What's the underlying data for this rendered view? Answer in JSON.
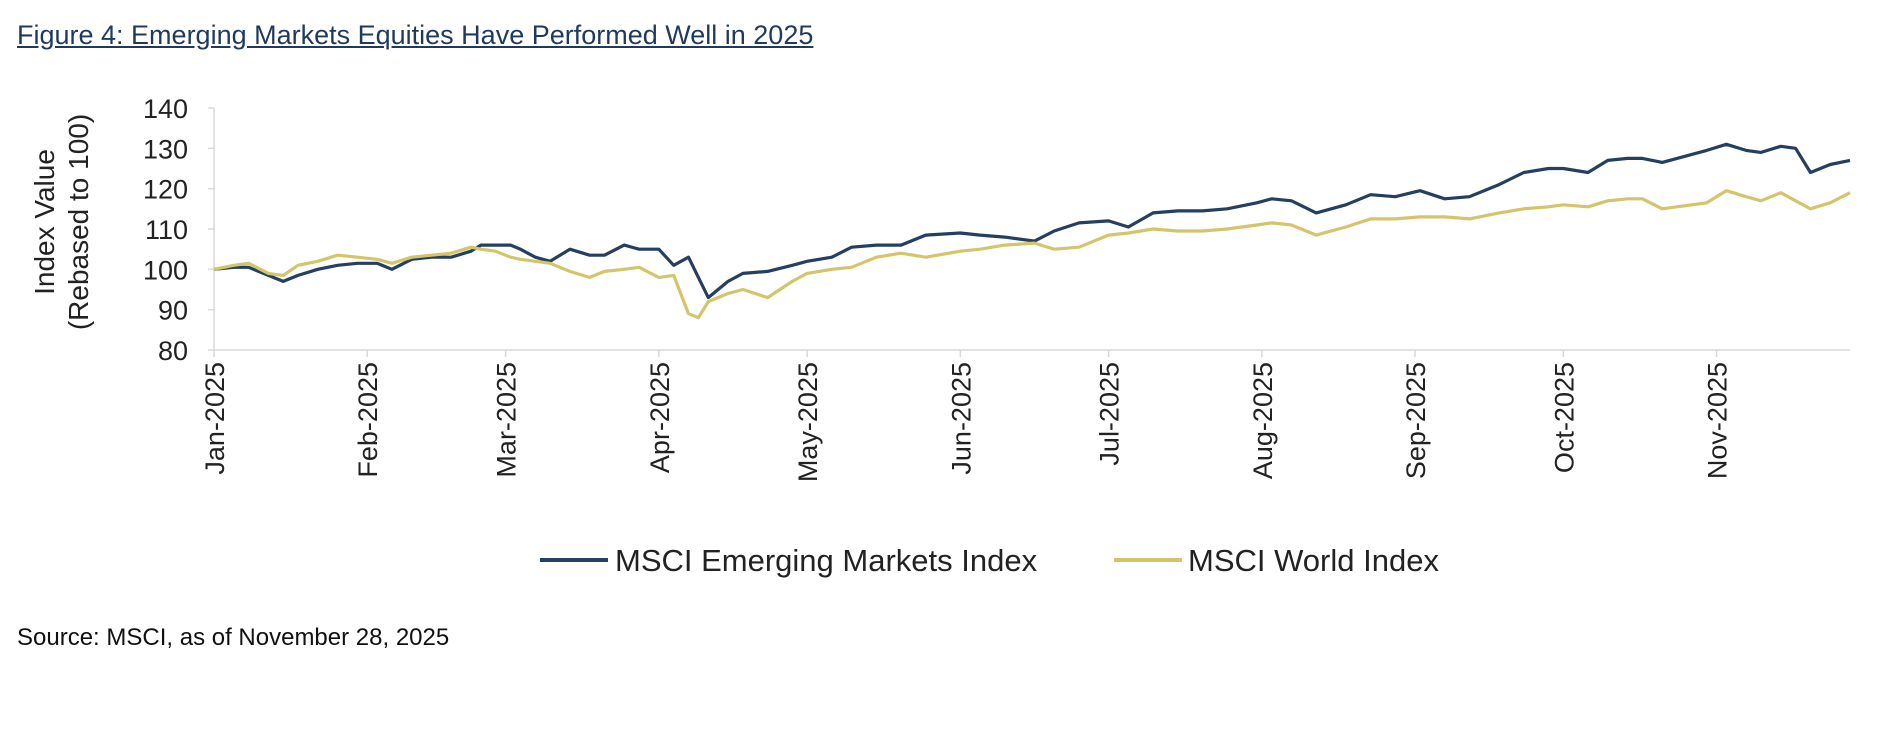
{
  "title": "Figure 4: Emerging Markets Equities Have Performed Well in 2025",
  "source": "Source: MSCI, as of November 28, 2025",
  "chart_data": {
    "type": "line",
    "title": "Figure 4: Emerging Markets Equities Have Performed Well in 2025",
    "ylabel_line1": "Index Value",
    "ylabel_line2": "(Rebased to 100)",
    "xlabel": "",
    "ylim": [
      80,
      140
    ],
    "yticks": [
      80,
      90,
      100,
      110,
      120,
      130,
      140
    ],
    "xlim": [
      "2025-01-01",
      "2025-11-28"
    ],
    "x_tick_labels": [
      "Jan-2025",
      "Feb-2025",
      "Mar-2025",
      "Apr-2025",
      "May-2025",
      "Jun-2025",
      "Jul-2025",
      "Aug-2025",
      "Sep-2025",
      "Oct-2025",
      "Nov-2025"
    ],
    "x_tick_dates": [
      "2025-01-01",
      "2025-02-01",
      "2025-03-01",
      "2025-04-01",
      "2025-05-01",
      "2025-06-01",
      "2025-07-01",
      "2025-08-01",
      "2025-09-01",
      "2025-10-01",
      "2025-11-01"
    ],
    "grid": false,
    "legend_position": "bottom",
    "series": [
      {
        "name": "MSCI Emerging Markets Index",
        "color": "#243f60",
        "x": [
          "2025-01-01",
          "2025-01-05",
          "2025-01-08",
          "2025-01-12",
          "2025-01-15",
          "2025-01-18",
          "2025-01-22",
          "2025-01-26",
          "2025-01-30",
          "2025-02-03",
          "2025-02-06",
          "2025-02-10",
          "2025-02-14",
          "2025-02-18",
          "2025-02-22",
          "2025-02-24",
          "2025-02-27",
          "2025-03-02",
          "2025-03-04",
          "2025-03-07",
          "2025-03-10",
          "2025-03-14",
          "2025-03-18",
          "2025-03-21",
          "2025-03-25",
          "2025-03-28",
          "2025-04-01",
          "2025-04-04",
          "2025-04-07",
          "2025-04-09",
          "2025-04-11",
          "2025-04-15",
          "2025-04-18",
          "2025-04-23",
          "2025-04-28",
          "2025-05-01",
          "2025-05-06",
          "2025-05-10",
          "2025-05-15",
          "2025-05-20",
          "2025-05-25",
          "2025-06-01",
          "2025-06-05",
          "2025-06-10",
          "2025-06-16",
          "2025-06-20",
          "2025-06-25",
          "2025-07-01",
          "2025-07-05",
          "2025-07-10",
          "2025-07-15",
          "2025-07-20",
          "2025-07-25",
          "2025-07-31",
          "2025-08-03",
          "2025-08-07",
          "2025-08-12",
          "2025-08-18",
          "2025-08-23",
          "2025-08-28",
          "2025-09-02",
          "2025-09-07",
          "2025-09-12",
          "2025-09-18",
          "2025-09-23",
          "2025-09-28",
          "2025-10-01",
          "2025-10-06",
          "2025-10-10",
          "2025-10-14",
          "2025-10-17",
          "2025-10-21",
          "2025-10-27",
          "2025-10-30",
          "2025-11-03",
          "2025-11-07",
          "2025-11-10",
          "2025-11-14",
          "2025-11-17",
          "2025-11-20",
          "2025-11-24",
          "2025-11-28"
        ],
        "values": [
          100,
          100.5,
          100.5,
          98.5,
          97,
          98.5,
          100,
          101,
          101.5,
          101.5,
          100,
          102.5,
          103,
          103,
          104.5,
          106,
          106,
          106,
          105,
          103,
          102,
          105,
          103.5,
          103.5,
          106,
          105,
          105,
          101,
          103,
          98,
          93,
          97,
          99,
          99.5,
          101,
          102,
          103,
          105.5,
          106,
          106,
          108.5,
          109,
          108.5,
          108,
          107,
          109.5,
          111.5,
          112,
          110.5,
          114,
          114.5,
          114.5,
          115,
          116.5,
          117.5,
          117,
          114,
          116,
          118.5,
          118,
          119.5,
          117.5,
          118,
          121,
          124,
          125,
          125,
          124,
          127,
          127.5,
          127.5,
          126.5,
          128.5,
          129.5,
          131,
          129.5,
          129,
          130.5,
          130,
          124,
          126,
          127
        ]
      },
      {
        "name": "MSCI World Index",
        "color": "#d4c56a",
        "x": [
          "2025-01-01",
          "2025-01-05",
          "2025-01-08",
          "2025-01-12",
          "2025-01-15",
          "2025-01-18",
          "2025-01-22",
          "2025-01-26",
          "2025-01-30",
          "2025-02-03",
          "2025-02-06",
          "2025-02-10",
          "2025-02-14",
          "2025-02-18",
          "2025-02-22",
          "2025-02-24",
          "2025-02-27",
          "2025-03-02",
          "2025-03-04",
          "2025-03-07",
          "2025-03-10",
          "2025-03-14",
          "2025-03-18",
          "2025-03-21",
          "2025-03-25",
          "2025-03-28",
          "2025-04-01",
          "2025-04-04",
          "2025-04-07",
          "2025-04-09",
          "2025-04-11",
          "2025-04-15",
          "2025-04-18",
          "2025-04-23",
          "2025-04-28",
          "2025-05-01",
          "2025-05-06",
          "2025-05-10",
          "2025-05-15",
          "2025-05-20",
          "2025-05-25",
          "2025-06-01",
          "2025-06-05",
          "2025-06-10",
          "2025-06-16",
          "2025-06-20",
          "2025-06-25",
          "2025-07-01",
          "2025-07-05",
          "2025-07-10",
          "2025-07-15",
          "2025-07-20",
          "2025-07-25",
          "2025-07-31",
          "2025-08-03",
          "2025-08-07",
          "2025-08-12",
          "2025-08-18",
          "2025-08-23",
          "2025-08-28",
          "2025-09-02",
          "2025-09-07",
          "2025-09-12",
          "2025-09-18",
          "2025-09-23",
          "2025-09-28",
          "2025-10-01",
          "2025-10-06",
          "2025-10-10",
          "2025-10-14",
          "2025-10-17",
          "2025-10-21",
          "2025-10-27",
          "2025-10-30",
          "2025-11-03",
          "2025-11-07",
          "2025-11-10",
          "2025-11-14",
          "2025-11-17",
          "2025-11-20",
          "2025-11-24",
          "2025-11-28"
        ],
        "values": [
          100,
          101,
          101.5,
          99,
          98.5,
          101,
          102,
          103.5,
          103,
          102.5,
          101.5,
          103,
          103.5,
          104,
          105.5,
          105,
          104.5,
          103,
          102.5,
          102,
          101.5,
          99.5,
          98,
          99.5,
          100,
          100.5,
          98,
          98.5,
          89,
          88,
          92,
          94,
          95,
          93,
          97,
          99,
          100,
          100.5,
          103,
          104,
          103,
          104.5,
          105,
          106,
          106.5,
          105,
          105.5,
          108.5,
          109,
          110,
          109.5,
          109.5,
          110,
          111,
          111.5,
          111,
          108.5,
          110.5,
          112.5,
          112.5,
          113,
          113,
          112.5,
          114,
          115,
          115.5,
          116,
          115.5,
          117,
          117.5,
          117.5,
          115,
          116,
          116.5,
          119.5,
          118,
          117,
          119,
          117,
          115,
          116.5,
          119
        ]
      }
    ]
  }
}
